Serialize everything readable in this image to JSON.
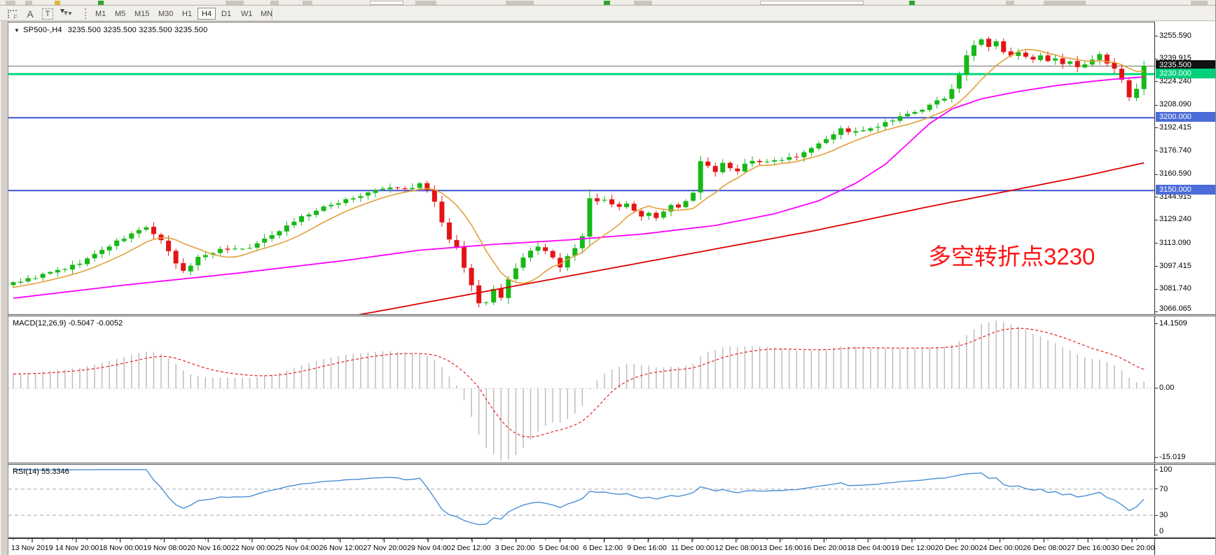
{
  "icons": {
    "triangle": "▼",
    "caret": "▾"
  },
  "toolbar": {
    "grid_tool_label": "F",
    "cursor_label": "A",
    "text_label": "T",
    "timeframes": [
      "M1",
      "M5",
      "M15",
      "M30",
      "H1",
      "H4",
      "D1",
      "W1",
      "MN"
    ],
    "active_timeframe": "H4"
  },
  "chart": {
    "title": {
      "symbol_period": "SP500-,H4",
      "quotes": "3235.500 3235.500 3235.500 3235.500"
    },
    "annotation": {
      "text": "多空转折点3230",
      "color": "#ff1414"
    },
    "price_axis": {
      "ticks": [
        "3255.590",
        "3239.915",
        "3224.240",
        "3208.090",
        "3192.415",
        "3176.740",
        "3160.590",
        "3144.915",
        "3129.240",
        "3113.090",
        "3097.415",
        "3081.740",
        "3066.065"
      ],
      "badges": [
        {
          "label": "3235.500",
          "price": 3235.5,
          "bg": "#111111"
        },
        {
          "label": "3230.000",
          "price": 3230.0,
          "bg": "#00cf7c"
        },
        {
          "label": "3200.000",
          "price": 3200.0,
          "bg": "#4a6bd8"
        },
        {
          "label": "3150.000",
          "price": 3150.0,
          "bg": "#4a6bd8"
        }
      ]
    },
    "hlines": [
      {
        "price": 3235.5,
        "color": "#6e6e6e",
        "width": 1
      },
      {
        "price": 3230.0,
        "color": "#00d97e",
        "width": 3
      },
      {
        "price": 3200.0,
        "color": "#3d55d4",
        "width": 2
      },
      {
        "price": 3150.0,
        "color": "#3d55d4",
        "width": 2
      }
    ],
    "series": {
      "candles": {
        "up_color": "#17b817",
        "down_color": "#e41414",
        "anchors": [
          [
            0,
            3087
          ],
          [
            2,
            3089
          ],
          [
            4,
            3092
          ],
          [
            6,
            3095
          ],
          [
            8,
            3098
          ],
          [
            10,
            3103
          ],
          [
            13,
            3112
          ],
          [
            16,
            3120
          ],
          [
            18,
            3125
          ],
          [
            20,
            3115
          ],
          [
            22,
            3100
          ],
          [
            23,
            3094
          ],
          [
            25,
            3104
          ],
          [
            27,
            3108
          ],
          [
            29,
            3110
          ],
          [
            31,
            3110
          ],
          [
            33,
            3113
          ],
          [
            35,
            3120
          ],
          [
            37,
            3126
          ],
          [
            39,
            3132
          ],
          [
            41,
            3136
          ],
          [
            43,
            3140
          ],
          [
            45,
            3144
          ],
          [
            47,
            3146
          ],
          [
            49,
            3150
          ],
          [
            51,
            3152
          ],
          [
            53,
            3151
          ],
          [
            55,
            3154
          ],
          [
            56,
            3150
          ],
          [
            57,
            3142
          ],
          [
            58,
            3128
          ],
          [
            59,
            3116
          ],
          [
            60,
            3110
          ],
          [
            61,
            3096
          ],
          [
            62,
            3086
          ],
          [
            63,
            3072
          ],
          [
            64,
            3074
          ],
          [
            65,
            3082
          ],
          [
            66,
            3076
          ],
          [
            67,
            3088
          ],
          [
            68,
            3096
          ],
          [
            69,
            3103
          ],
          [
            70,
            3108
          ],
          [
            71,
            3112
          ],
          [
            72,
            3108
          ],
          [
            73,
            3103
          ],
          [
            74,
            3098
          ],
          [
            75,
            3104
          ],
          [
            76,
            3110
          ],
          [
            77,
            3118
          ],
          [
            78,
            3145
          ],
          [
            79,
            3142
          ],
          [
            80,
            3144
          ],
          [
            81,
            3140
          ],
          [
            82,
            3138
          ],
          [
            83,
            3142
          ],
          [
            84,
            3136
          ],
          [
            85,
            3132
          ],
          [
            86,
            3135
          ],
          [
            87,
            3131
          ],
          [
            88,
            3136
          ],
          [
            89,
            3140
          ],
          [
            90,
            3139
          ],
          [
            91,
            3142
          ],
          [
            92,
            3148
          ],
          [
            93,
            3170
          ],
          [
            94,
            3166
          ],
          [
            95,
            3162
          ],
          [
            96,
            3170
          ],
          [
            97,
            3166
          ],
          [
            98,
            3163
          ],
          [
            99,
            3168
          ],
          [
            100,
            3171
          ],
          [
            102,
            3169
          ],
          [
            104,
            3172
          ],
          [
            106,
            3174
          ],
          [
            108,
            3180
          ],
          [
            110,
            3186
          ],
          [
            112,
            3192
          ],
          [
            114,
            3190
          ],
          [
            116,
            3192
          ],
          [
            118,
            3196
          ],
          [
            120,
            3200
          ],
          [
            122,
            3204
          ],
          [
            124,
            3208
          ],
          [
            126,
            3214
          ],
          [
            127,
            3220
          ],
          [
            128,
            3230
          ],
          [
            129,
            3242
          ],
          [
            130,
            3250
          ],
          [
            131,
            3254
          ],
          [
            132,
            3248
          ],
          [
            133,
            3252
          ],
          [
            134,
            3245
          ],
          [
            135,
            3242
          ],
          [
            136,
            3246
          ],
          [
            137,
            3243
          ],
          [
            138,
            3239
          ],
          [
            139,
            3242
          ],
          [
            140,
            3238
          ],
          [
            141,
            3240
          ],
          [
            142,
            3236
          ],
          [
            143,
            3238
          ],
          [
            144,
            3234
          ],
          [
            145,
            3237
          ],
          [
            146,
            3240
          ],
          [
            147,
            3243
          ],
          [
            148,
            3238
          ],
          [
            149,
            3234
          ],
          [
            150,
            3226
          ],
          [
            151,
            3214
          ],
          [
            152,
            3219
          ],
          [
            153,
            3235.5
          ]
        ]
      },
      "ma_fast": {
        "color": "#e2a03b"
      },
      "ma_mid": {
        "color": "#ff00ff",
        "anchors": [
          [
            0,
            3076
          ],
          [
            15,
            3085
          ],
          [
            30,
            3093
          ],
          [
            45,
            3102
          ],
          [
            55,
            3109
          ],
          [
            65,
            3113
          ],
          [
            75,
            3116
          ],
          [
            85,
            3120
          ],
          [
            95,
            3126
          ],
          [
            103,
            3134
          ],
          [
            109,
            3143
          ],
          [
            114,
            3155
          ],
          [
            118,
            3168
          ],
          [
            121,
            3182
          ],
          [
            124,
            3196
          ],
          [
            127,
            3206
          ],
          [
            131,
            3213
          ],
          [
            136,
            3218
          ],
          [
            141,
            3222
          ],
          [
            146,
            3225
          ],
          [
            150,
            3227
          ],
          [
            153,
            3228
          ]
        ]
      },
      "ma_slow": {
        "color": "#dd0000",
        "anchors": [
          [
            44,
            3062
          ],
          [
            60,
            3077
          ],
          [
            76,
            3092
          ],
          [
            92,
            3107
          ],
          [
            108,
            3122
          ],
          [
            124,
            3139
          ],
          [
            136,
            3151
          ],
          [
            145,
            3160
          ],
          [
            153,
            3169
          ]
        ]
      }
    }
  },
  "macd_panel": {
    "label": "MACD(12,26,9) -0.5047 -0.0052",
    "axis": [
      "14.1509",
      "0.00",
      "-15.019"
    ],
    "histogram_color": "#bdbdbd",
    "signal_color": "#e82222"
  },
  "rsi_panel": {
    "label": "RSI(14) 55.3346",
    "axis": [
      "100",
      "70",
      "30",
      "0"
    ],
    "levels": [
      70,
      30
    ],
    "line_color": "#4a8fd6"
  },
  "time_axis": {
    "labels": [
      "13 Nov 2019",
      "14 Nov 20:00",
      "18 Nov 00:00",
      "19 Nov 08:00",
      "20 Nov 16:00",
      "22 Nov 00:00",
      "25 Nov 04:00",
      "26 Nov 12:00",
      "27 Nov 20:00",
      "29 Nov 04:00",
      "2 Dec 12:00",
      "3 Dec 20:00",
      "5 Dec 04:00",
      "6 Dec 12:00",
      "9 Dec 16:00",
      "11 Dec 00:00",
      "12 Dec 08:00",
      "13 Dec 16:00",
      "16 Dec 20:00",
      "18 Dec 04:00",
      "19 Dec 12:00",
      "20 Dec 20:00",
      "24 Dec 00:00",
      "26 Dec 08:00",
      "27 Dec 16:00",
      "30 Dec 20:00"
    ]
  }
}
